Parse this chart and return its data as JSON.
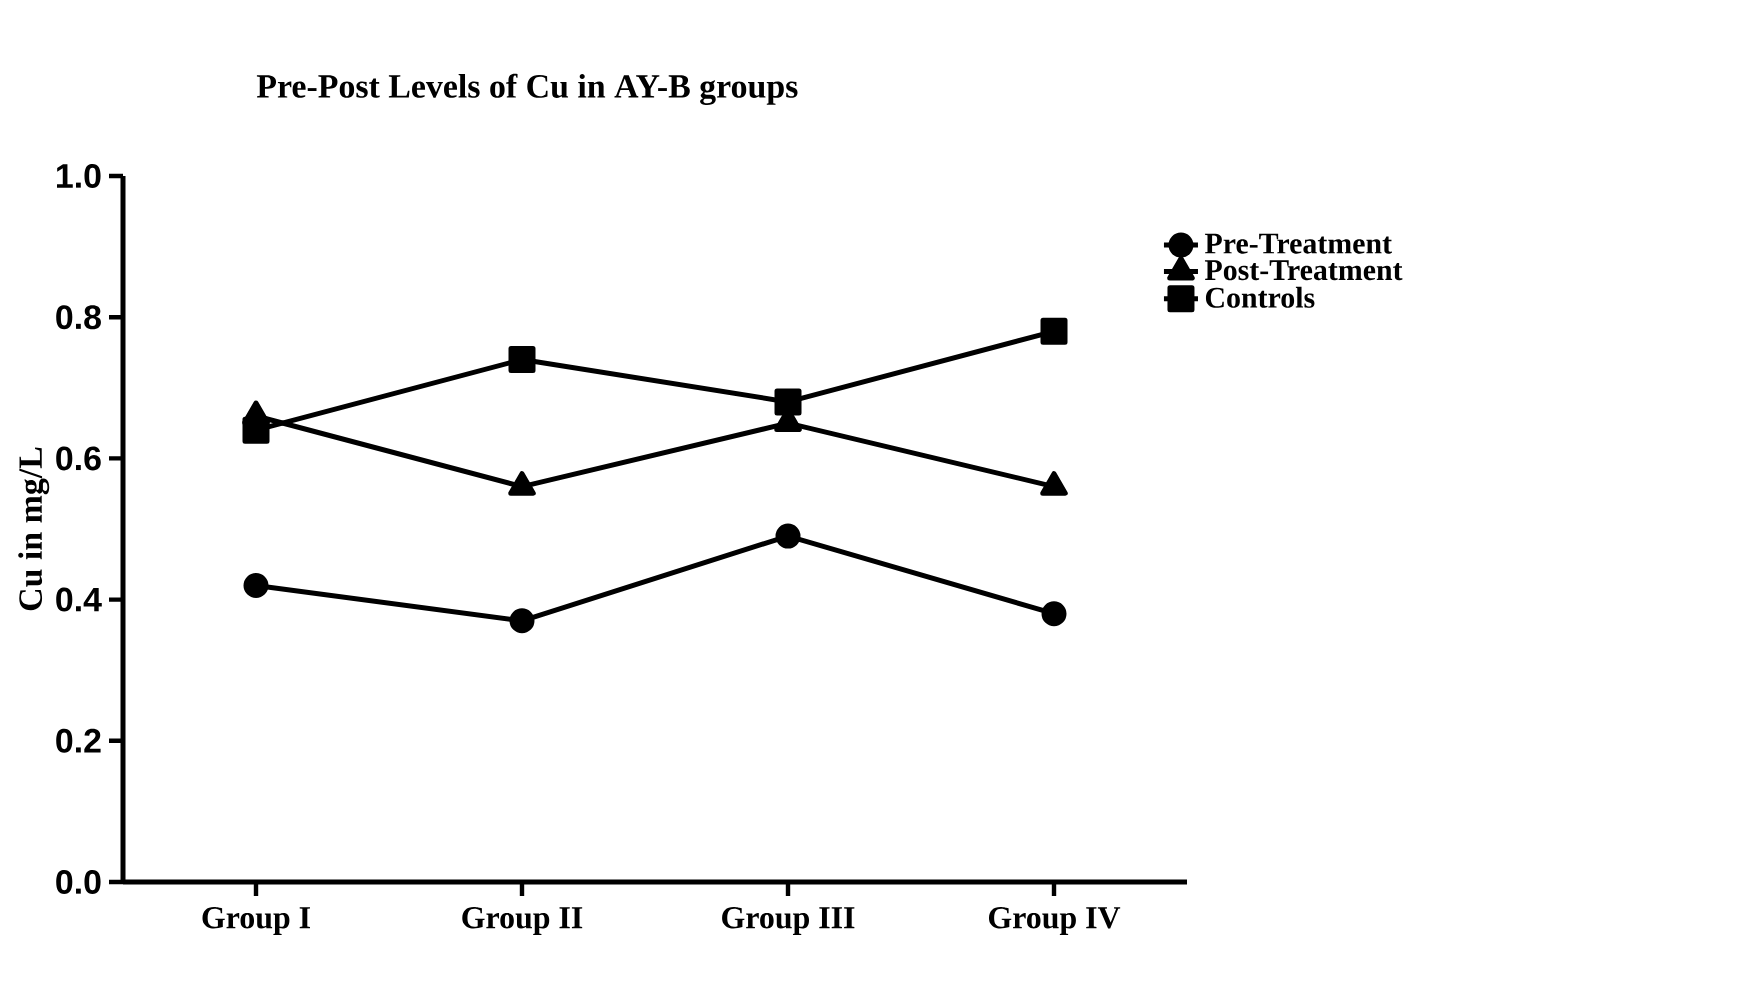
{
  "chart_data": {
    "type": "line",
    "title": "Pre-Post Levels of Cu in AY-B groups",
    "ylabel": "Cu in mg/L",
    "categories": [
      "Group I",
      "Group II",
      "Group III",
      "Group IV"
    ],
    "series": [
      {
        "name": "Pre-Treatment",
        "color": "#000000",
        "marker": "circle",
        "values": [
          0.42,
          0.37,
          0.49,
          0.38
        ]
      },
      {
        "name": "Post-Treatment",
        "color": "#000000",
        "marker": "triangle",
        "values": [
          0.66,
          0.56,
          0.65,
          0.56
        ]
      },
      {
        "name": "Controls",
        "color": "#000000",
        "marker": "square",
        "values": [
          0.64,
          0.74,
          0.68,
          0.78
        ]
      }
    ],
    "ylim": [
      0,
      1.0
    ],
    "yticks": [
      {
        "value": 0,
        "label": "0.0"
      },
      {
        "value": 0.2,
        "label": "0.2"
      },
      {
        "value": 0.4,
        "label": "0.4"
      },
      {
        "value": 0.6,
        "label": "0.6"
      },
      {
        "value": 0.8,
        "label": "0.8"
      },
      {
        "value": 1.0,
        "label": "1.0"
      }
    ],
    "grid": false,
    "legend": "top right",
    "line_style": "solid"
  }
}
